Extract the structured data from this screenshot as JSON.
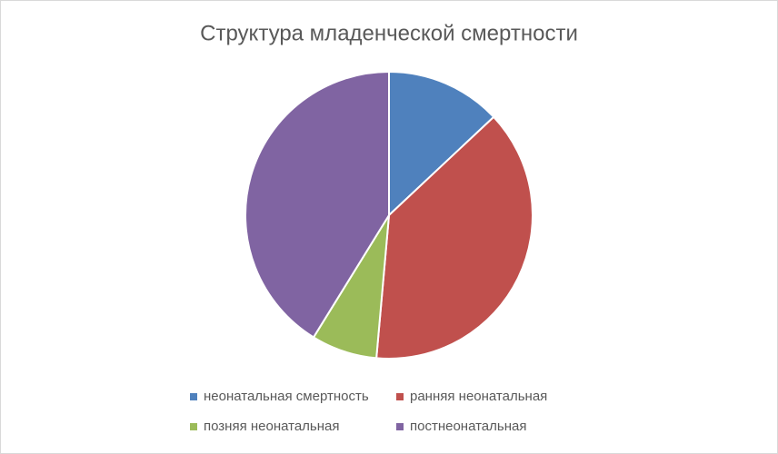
{
  "chart_data": {
    "type": "pie",
    "title": "Структура младенческой смертности",
    "categories": [
      "неонатальная смертность",
      "ранняя неонатальная",
      "позняя неонатальная",
      "постнеонатальная"
    ],
    "values": [
      13,
      38.4,
      7.4,
      41.2
    ],
    "colors": [
      "#4f81bd",
      "#c0504d",
      "#9bbb59",
      "#8064a2"
    ],
    "legend": "bottom"
  }
}
